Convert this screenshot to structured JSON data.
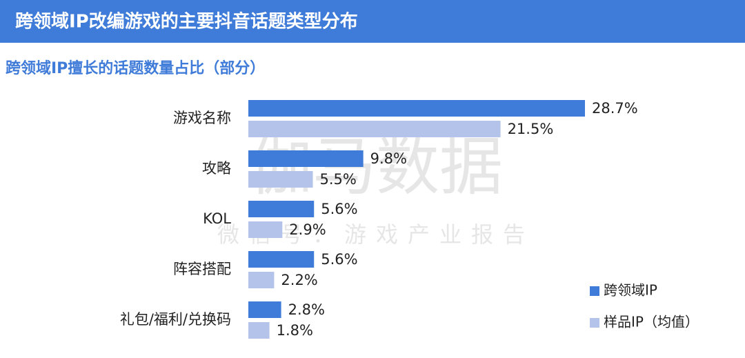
{
  "header": {
    "title": "跨领域IP改编游戏的主要抖音话题类型分布"
  },
  "watermark": {
    "main": "伽马数据",
    "sub": "微信号：游戏产业报告"
  },
  "chart_data": {
    "type": "bar",
    "orientation": "horizontal",
    "title": "跨领域IP擅长的话题数量占比（部分）",
    "categories": [
      "游戏名称",
      "攻略",
      "KOL",
      "阵容搭配",
      "礼包/福利/兑换码"
    ],
    "series": [
      {
        "name": "跨领域IP",
        "color": "#3f7bd8",
        "values": [
          28.7,
          9.8,
          5.6,
          5.6,
          2.8
        ],
        "value_labels": [
          "28.7%",
          "9.8%",
          "5.6%",
          "5.6%",
          "2.8%"
        ]
      },
      {
        "name": "样品IP（均值）",
        "color": "#b3c3e9",
        "values": [
          21.5,
          5.5,
          2.9,
          2.2,
          1.8
        ],
        "value_labels": [
          "21.5%",
          "5.5%",
          "2.9%",
          "2.2%",
          "1.8%"
        ]
      }
    ],
    "legend_position": "bottom-right"
  }
}
